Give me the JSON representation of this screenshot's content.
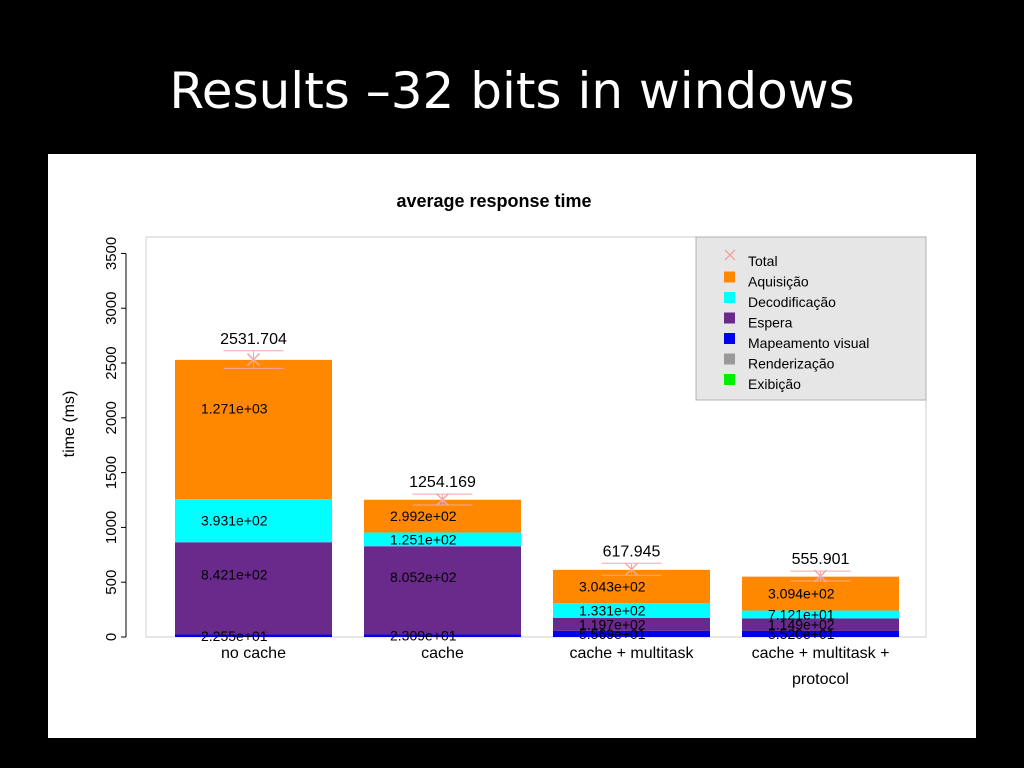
{
  "slide": {
    "title": "Results –32 bits in windows"
  },
  "chart_data": {
    "type": "bar",
    "stacked": true,
    "title": "average response time",
    "xlabel": "",
    "ylabel": "time (ms)",
    "ylim": [
      0,
      3500
    ],
    "yticks": [
      0,
      500,
      1000,
      1500,
      2000,
      2500,
      3000,
      3500
    ],
    "categories": [
      [
        "no cache"
      ],
      [
        "cache"
      ],
      [
        "cache + multitask"
      ],
      [
        "cache + multitask +",
        "protocol"
      ]
    ],
    "totals": [
      2531.704,
      1254.169,
      617.945,
      555.901
    ],
    "total_labels": [
      "2531.704",
      "1254.169",
      "617.945",
      "555.901"
    ],
    "error_margin": [
      80,
      50,
      55,
      45
    ],
    "series": [
      {
        "name": "Exibição",
        "color": "#00ee00",
        "values": [
          0,
          0,
          0,
          0
        ],
        "labels": [
          "",
          "",
          "",
          ""
        ]
      },
      {
        "name": "Renderização",
        "color": "#999999",
        "values": [
          0,
          0,
          0,
          0
        ],
        "labels": [
          "",
          "",
          "",
          ""
        ]
      },
      {
        "name": "Mapeamento visual",
        "color": "#0000ee",
        "values": [
          22.55,
          23.09,
          55.69,
          55.2
        ],
        "labels": [
          "2.255e+01",
          "2.309e+01",
          "5.569e+01",
          "5.520e+01"
        ]
      },
      {
        "name": "Espera",
        "color": "#6a2a8c",
        "values": [
          842.1,
          805.2,
          119.7,
          114.9
        ],
        "labels": [
          "8.421e+02",
          "8.052e+02",
          "1.197e+02",
          "1.149e+02"
        ]
      },
      {
        "name": "Decodificação",
        "color": "#00ffff",
        "values": [
          393.1,
          125.1,
          133.1,
          71.21
        ],
        "labels": [
          "3.931e+02",
          "1.251e+02",
          "1.331e+02",
          "7.121e+01"
        ]
      },
      {
        "name": "Aquisição",
        "color": "#ff8800",
        "values": [
          1271,
          299.2,
          304.3,
          309.4
        ],
        "labels": [
          "1.271e+03",
          "2.992e+02",
          "3.043e+02",
          "3.094e+02"
        ]
      }
    ],
    "legend": {
      "placement": "top-right",
      "entries": [
        {
          "name": "Total",
          "color": "#f4a0a0",
          "marker": "x"
        },
        {
          "name": "Aquisição",
          "color": "#ff8800",
          "marker": "square"
        },
        {
          "name": "Decodificação",
          "color": "#00ffff",
          "marker": "square"
        },
        {
          "name": "Espera",
          "color": "#6a2a8c",
          "marker": "square"
        },
        {
          "name": "Mapeamento visual",
          "color": "#0000ee",
          "marker": "square"
        },
        {
          "name": "Renderização",
          "color": "#999999",
          "marker": "square"
        },
        {
          "name": "Exibição",
          "color": "#00ee00",
          "marker": "square"
        }
      ]
    }
  }
}
